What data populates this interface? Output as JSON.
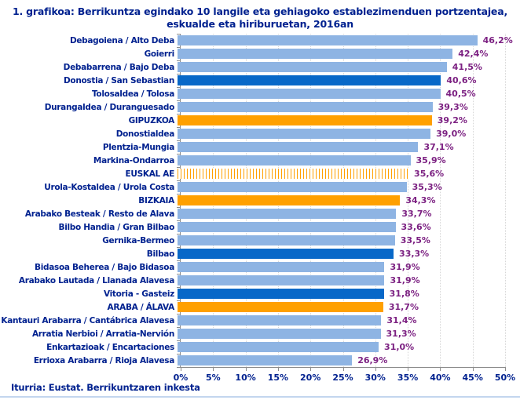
{
  "title": {
    "line1": "1. grafikoa: Berrikuntza egindako 10 langile eta gehiagoko establezimenduen portzentajea,",
    "line2": "eskualde eta hiriburuetan, 2016an"
  },
  "source": {
    "text": "Iturria: Eustat. Berrikuntzaren inkesta"
  },
  "colors": {
    "bar_light_blue": "#8EB4E3",
    "bar_capital_dark_blue": "#0868C8",
    "bar_province_orange": "#FFA000",
    "bar_hatched_stripe": "#FFA000",
    "label_navy": "#00218F",
    "value_purple": "#7C2182",
    "gridline": "#D6D6D6",
    "axis": "#8C8C8C",
    "bottom_rule": "#C3D6EE"
  },
  "chart_data": {
    "type": "bar",
    "orientation": "horizontal",
    "title": "1. grafikoa: Berrikuntza egindako 10 langile eta gehiagoko establezimenduen portzentajea, eskualde eta hiriburuetan, 2016an",
    "xlabel": "",
    "ylabel": "",
    "xlim": [
      0,
      50
    ],
    "grid": true,
    "x_ticks": [
      "0%",
      "5%",
      "10%",
      "15%",
      "20%",
      "25%",
      "30%",
      "35%",
      "40%",
      "45%",
      "50%"
    ],
    "categories": [
      "Debagoiena  /  Alto Deba",
      "Goierri",
      "Debabarrena  /  Bajo Deba",
      "Donostia / San Sebastian",
      "Tolosaldea  /  Tolosa",
      "Durangaldea  /  Duranguesado",
      "GIPUZKOA",
      "Donostialdea",
      "Plentzia-Mungia",
      "Markina-Ondarroa",
      "EUSKAL AE",
      "Urola-Kostaldea  /  Urola Costa",
      "BIZKAIA",
      "Arabako Besteak / Resto de Alava",
      "Bilbo Handia  /  Gran Bilbao",
      "Gernika-Bermeo",
      "Bilbao",
      "Bidasoa Beherea  /  Bajo Bidasoa",
      "Arabako Lautada  /  Llanada Alavesa",
      "Vitoria - Gasteiz",
      "ARABA / ÁLAVA",
      "Kantauri Arabarra  /  Cantábrica Alavesa",
      "Arratia Nerbioi  /  Arratia-Nervión",
      "Enkartazioak  /  Encartaciones",
      "Errioxa Arabarra  /  Rioja Alavesa"
    ],
    "values": [
      46.2,
      42.4,
      41.5,
      40.6,
      40.5,
      39.3,
      39.2,
      39.0,
      37.1,
      35.9,
      35.6,
      35.3,
      34.3,
      33.7,
      33.6,
      33.5,
      33.3,
      31.9,
      31.9,
      31.8,
      31.7,
      31.4,
      31.3,
      31.0,
      26.9
    ],
    "value_labels": [
      "46,2%",
      "42,4%",
      "41,5%",
      "40,6%",
      "40,5%",
      "39,3%",
      "39,2%",
      "39,0%",
      "37,1%",
      "35,9%",
      "35,6%",
      "35,3%",
      "34,3%",
      "33,7%",
      "33,6%",
      "33,5%",
      "33,3%",
      "31,9%",
      "31,9%",
      "31,8%",
      "31,7%",
      "31,4%",
      "31,3%",
      "31,0%",
      "26,9%"
    ],
    "bar_styles": [
      "light",
      "light",
      "light",
      "capital",
      "light",
      "light",
      "province",
      "light",
      "light",
      "light",
      "hatched",
      "light",
      "province",
      "light",
      "light",
      "light",
      "capital",
      "light",
      "light",
      "capital",
      "province",
      "light",
      "light",
      "light",
      "light"
    ],
    "legend_position": "none"
  }
}
